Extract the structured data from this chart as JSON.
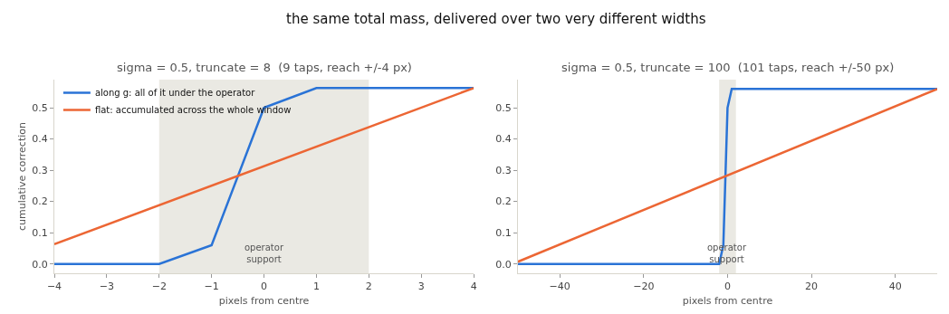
{
  "chart_data": [
    {
      "type": "line",
      "title": "sigma = 0.5, truncate = 8  (9 taps, reach +/-4 px)",
      "annotations": [
        "the same total mass, delivered over two very different widths"
      ],
      "xlabel": "pixels from centre",
      "ylabel": "cumulative correction",
      "series": [
        {
          "name": "along g: all of it under the operator",
          "color": "#2a73d6",
          "x": [
            -4,
            -3,
            -2,
            -1,
            0,
            1,
            2,
            3,
            4
          ],
          "values": [
            0,
            0,
            0,
            0.06,
            0.5,
            0.563,
            0.563,
            0.563,
            0.563
          ]
        },
        {
          "name": "flat: accumulated across the whole window",
          "color": "#ec6634",
          "x": [
            -4,
            4
          ],
          "values": [
            0.063,
            0.563
          ]
        }
      ],
      "xlim": [
        -4,
        4
      ],
      "xticks": [
        -4,
        -3,
        -2,
        -1,
        0,
        1,
        2,
        3,
        4
      ],
      "ylim": [
        -0.03,
        0.59
      ],
      "yticks": [
        {
          "value": 0,
          "label": "0.0"
        },
        0.1,
        0.2,
        0.3,
        0.4,
        0.5
      ],
      "bands": [
        {
          "axis": "x",
          "from": -2,
          "to": 2,
          "label": "operator\nsupport",
          "color": "#eae9e3"
        }
      ],
      "legend": "top left",
      "grid": false,
      "marker": "none",
      "line_style": "solid"
    },
    {
      "type": "line",
      "title": "sigma = 0.5, truncate = 100  (101 taps, reach +/-50 px)",
      "xlabel": "pixels from centre",
      "series": [
        {
          "color": "#2a73d6",
          "x": [
            -50,
            -2,
            -1,
            0,
            1,
            50
          ],
          "values": [
            0,
            0,
            0.06,
            0.5,
            0.56,
            0.56
          ]
        },
        {
          "color": "#ec6634",
          "x": [
            -50,
            50
          ],
          "values": [
            0.007,
            0.56
          ]
        }
      ],
      "xlim": [
        -50,
        50
      ],
      "xticks": [
        -40,
        -20,
        0,
        20,
        40
      ],
      "ylim": [
        -0.03,
        0.59
      ],
      "yticks": [
        {
          "value": 0,
          "label": "0.0"
        },
        0.1,
        0.2,
        0.3,
        0.4,
        0.5
      ],
      "bands": [
        {
          "axis": "x",
          "from": -2,
          "to": 2,
          "label": "operator\nsupport",
          "color": "#eae9e3"
        }
      ],
      "legend": false,
      "grid": false,
      "marker": "none",
      "line_style": "solid"
    }
  ]
}
